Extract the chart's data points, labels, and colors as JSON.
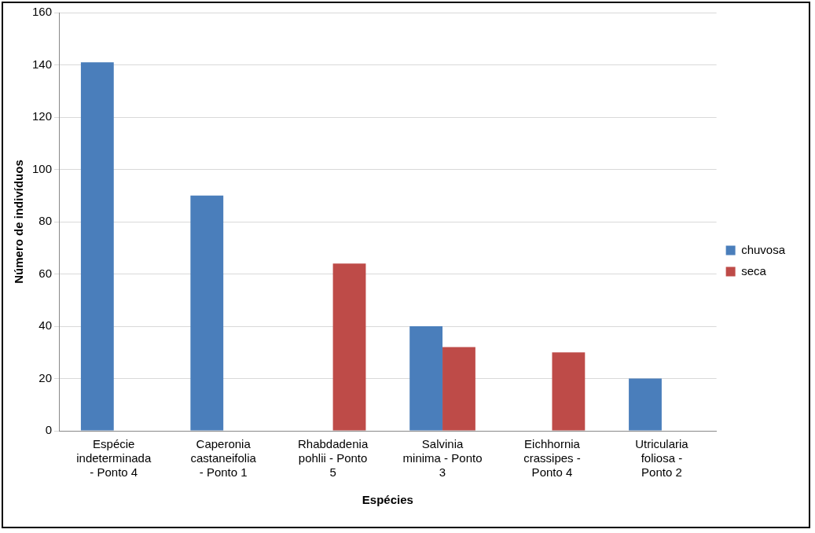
{
  "chart_data": {
    "type": "bar",
    "xlabel": "Espécies",
    "ylabel": "Número de indivíduos",
    "categories": [
      "Espécie indeterminada - Ponto 4",
      "Caperonia castaneifolia - Ponto 1",
      "Rhabdadenia pohlii - Ponto 5",
      "Salvinia minima - Ponto 3",
      "Eichhornia crassipes - Ponto 4",
      "Utricularia foliosa - Ponto 2"
    ],
    "series": [
      {
        "name": "chuvosa",
        "color": "#4a7ebb",
        "values": [
          141,
          90,
          null,
          40,
          null,
          20
        ]
      },
      {
        "name": "seca",
        "color": "#be4b48",
        "values": [
          null,
          null,
          64,
          32,
          30,
          null
        ]
      }
    ],
    "ylim": [
      0,
      160
    ],
    "yticks": [
      0,
      20,
      40,
      60,
      80,
      100,
      120,
      140,
      160
    ],
    "grid": "y",
    "legend": "right"
  }
}
